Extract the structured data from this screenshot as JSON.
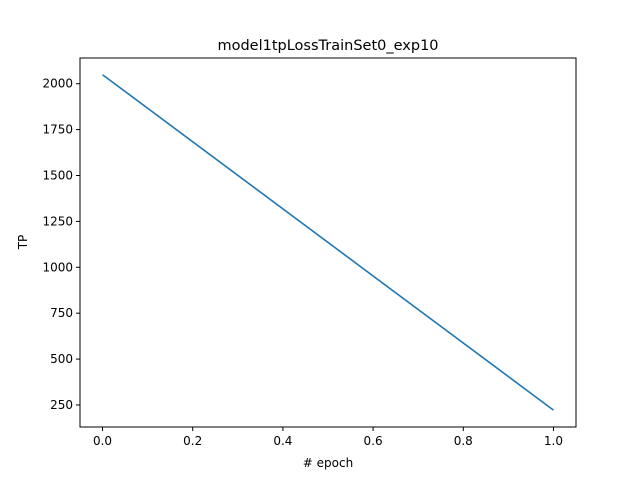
{
  "chart_data": {
    "type": "line",
    "title": "model1tpLossTrainSet0_exp10",
    "xlabel": "# epoch",
    "ylabel": "TP",
    "x": [
      0,
      1
    ],
    "series": [
      {
        "values": [
          2049,
          222
        ],
        "color": "#1f77b4"
      }
    ],
    "xlim": [
      -0.05,
      1.05
    ],
    "ylim": [
      130,
      2140
    ],
    "xticks": [
      0,
      0.2,
      0.4,
      0.6,
      0.8,
      1
    ],
    "xtick_labels": [
      "0.0",
      "0.2",
      "0.4",
      "0.6",
      "0.8",
      "1.0"
    ],
    "yticks": [
      250,
      500,
      750,
      1000,
      1250,
      1500,
      1750,
      2000
    ],
    "ytick_labels": [
      "250",
      "500",
      "750",
      "1000",
      "1250",
      "1500",
      "1750",
      "2000"
    ],
    "grid": false,
    "legend": "none"
  }
}
